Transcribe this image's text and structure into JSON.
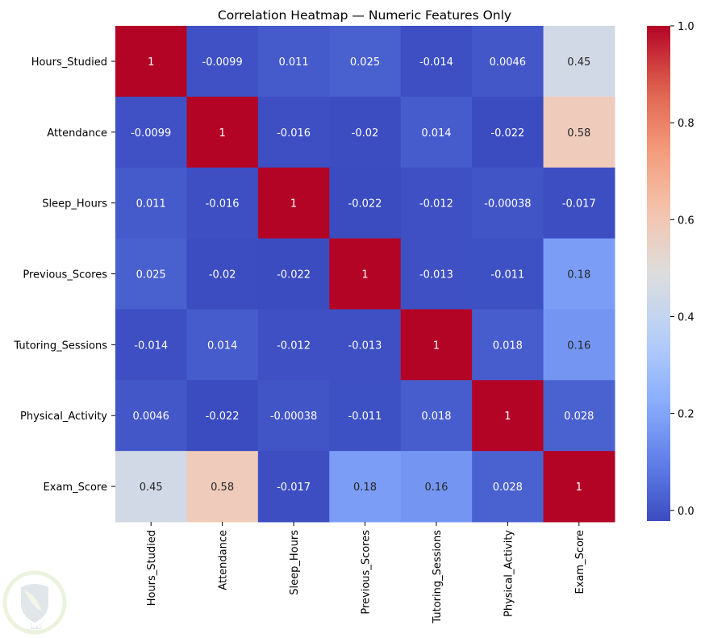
{
  "chart_data": {
    "type": "heatmap",
    "title": "Correlation Heatmap — Numeric Features Only",
    "xlabel": "",
    "ylabel": "",
    "rows": [
      "Hours_Studied",
      "Attendance",
      "Sleep_Hours",
      "Previous_Scores",
      "Tutoring_Sessions",
      "Physical_Activity",
      "Exam_Score"
    ],
    "columns": [
      "Hours_Studied",
      "Attendance",
      "Sleep_Hours",
      "Previous_Scores",
      "Tutoring_Sessions",
      "Physical_Activity",
      "Exam_Score"
    ],
    "values": [
      [
        1,
        -0.0099,
        0.011,
        0.025,
        -0.014,
        0.0046,
        0.45
      ],
      [
        -0.0099,
        1,
        -0.016,
        -0.02,
        0.014,
        -0.022,
        0.58
      ],
      [
        0.011,
        -0.016,
        1,
        -0.022,
        -0.012,
        -0.00038,
        -0.017
      ],
      [
        0.025,
        -0.02,
        -0.022,
        1,
        -0.013,
        -0.011,
        0.18
      ],
      [
        -0.014,
        0.014,
        -0.012,
        -0.013,
        1,
        0.018,
        0.16
      ],
      [
        0.0046,
        -0.022,
        -0.00038,
        -0.011,
        0.018,
        1,
        0.028
      ],
      [
        0.45,
        0.58,
        -0.017,
        0.18,
        0.16,
        0.028,
        1
      ]
    ],
    "annotations": [
      [
        "1",
        "-0.0099",
        "0.011",
        "0.025",
        "-0.014",
        "0.0046",
        "0.45"
      ],
      [
        "-0.0099",
        "1",
        "-0.016",
        "-0.02",
        "0.014",
        "-0.022",
        "0.58"
      ],
      [
        "0.011",
        "-0.016",
        "1",
        "-0.022",
        "-0.012",
        "-0.00038",
        "-0.017"
      ],
      [
        "0.025",
        "-0.02",
        "-0.022",
        "1",
        "-0.013",
        "-0.011",
        "0.18"
      ],
      [
        "-0.014",
        "0.014",
        "-0.012",
        "-0.013",
        "1",
        "0.018",
        "0.16"
      ],
      [
        "0.0046",
        "-0.022",
        "-0.00038",
        "-0.011",
        "0.018",
        "1",
        "0.028"
      ],
      [
        "0.45",
        "0.58",
        "-0.017",
        "0.18",
        "0.16",
        "0.028",
        "1"
      ]
    ],
    "colormap": "coolwarm",
    "vmin": -0.022,
    "vmax": 1.0,
    "colorbar": {
      "ticks": [
        0.0,
        0.2,
        0.4,
        0.6,
        0.8,
        1.0
      ],
      "tick_labels": [
        "0.0",
        "0.2",
        "0.4",
        "0.6",
        "0.8",
        "1.0"
      ],
      "placement": "right"
    },
    "grid": false
  },
  "watermark": {
    "icon": "shield-leaf-logo-icon",
    "text": "كفيل",
    "colors": {
      "ring": "#dcebc4",
      "shield": "#c9d3dc",
      "leaf": "#e6f0d6"
    }
  }
}
